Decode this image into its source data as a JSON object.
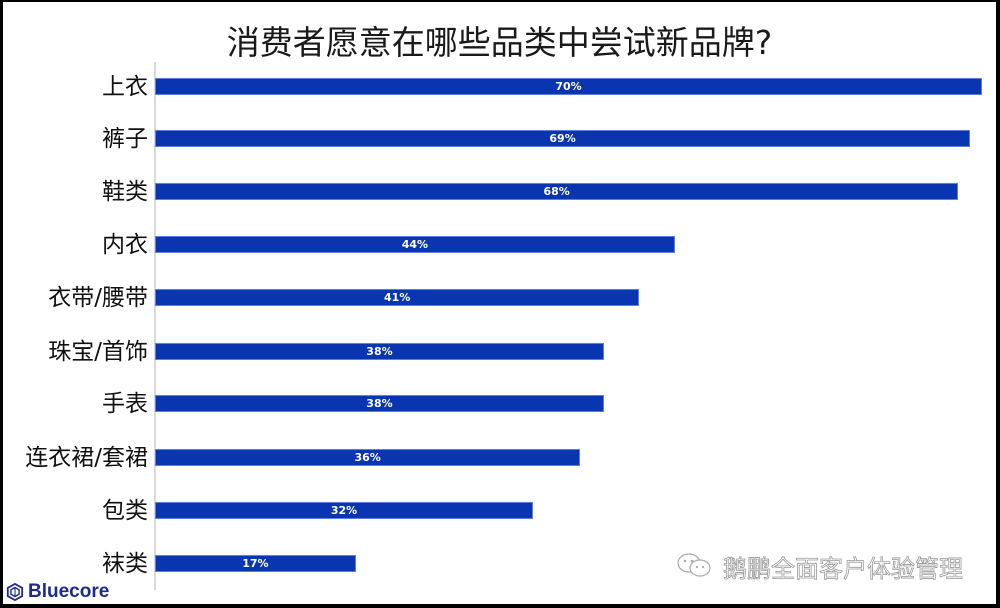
{
  "chart_data": {
    "type": "bar",
    "orientation": "horizontal",
    "title": "消费者愿意在哪些品类中尝试新品牌?",
    "xlabel": "",
    "ylabel": "",
    "categories": [
      "上衣",
      "裤子",
      "鞋类",
      "内衣",
      "衣带/腰带",
      "珠宝/首饰",
      "手表",
      "连衣裙/套裙",
      "包类",
      "袜类"
    ],
    "values": [
      70,
      69,
      68,
      44,
      41,
      38,
      38,
      36,
      32,
      17
    ],
    "value_labels": [
      "70%",
      "69%",
      "68%",
      "44%",
      "41%",
      "38%",
      "38%",
      "36%",
      "32%",
      "17%"
    ],
    "unit": "%",
    "xlim": [
      0,
      70
    ],
    "grid": false,
    "legend": null,
    "bar_color": "#0a35b0"
  },
  "branding": {
    "logo_text": "Bluecore",
    "logo_color": "#1d2b8f",
    "watermark_text": "鹅鹏全面客户体验管理"
  }
}
